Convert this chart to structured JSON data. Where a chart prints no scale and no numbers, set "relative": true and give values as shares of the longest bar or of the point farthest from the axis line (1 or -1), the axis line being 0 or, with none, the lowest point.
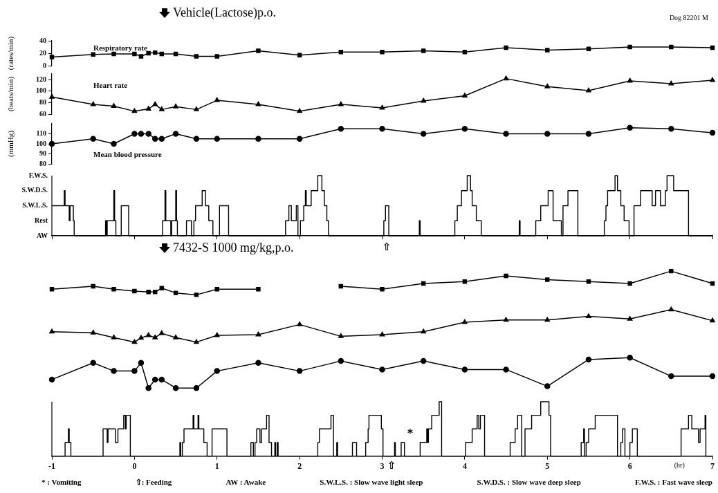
{
  "chart_data": [
    {
      "type": "line",
      "title": "Vehicle(Lactose)p.o.",
      "ylabel": "(rates/min)",
      "annotations": [
        "Dog 82201 M"
      ],
      "xlim": [
        -1,
        7
      ],
      "xticks": [
        -1,
        0,
        1,
        2,
        3,
        4,
        5,
        6,
        7
      ],
      "ylim": [
        0,
        40
      ],
      "yticks": [
        0,
        20,
        40
      ],
      "tick_labels": "y",
      "grid": false,
      "marker": "square",
      "series": [
        {
          "name": "Respiratory rate",
          "color": "#000000",
          "x": [
            -1,
            -0.5,
            -0.25,
            0,
            0.08,
            0.17,
            0.25,
            0.33,
            0.5,
            0.75,
            1,
            1.5,
            2,
            2.5,
            3,
            3.5,
            4,
            4.5,
            5,
            5.5,
            6,
            6.5,
            7
          ],
          "values": [
            14,
            18,
            19,
            19,
            15,
            20,
            21,
            19,
            19,
            15,
            15,
            24,
            17,
            22,
            22,
            24,
            22,
            29,
            25,
            27,
            30,
            30,
            29
          ]
        }
      ]
    },
    {
      "type": "line",
      "ylabel": "(beats/min)",
      "xlim": [
        -1,
        7
      ],
      "xticks": [
        -1,
        0,
        1,
        2,
        3,
        4,
        5,
        6,
        7
      ],
      "ylim": [
        60,
        130
      ],
      "yticks": [
        60,
        80,
        100,
        120
      ],
      "tick_labels": "y",
      "grid": false,
      "marker": "triangle",
      "series": [
        {
          "name": "Heart rate",
          "color": "#000000",
          "x": [
            -1,
            -0.5,
            -0.25,
            0,
            0.17,
            0.25,
            0.33,
            0.5,
            0.75,
            1,
            1.5,
            2,
            2.5,
            3,
            3.5,
            4,
            4.5,
            5,
            5.5,
            6,
            6.5,
            7
          ],
          "values": [
            90,
            77,
            74,
            65,
            69,
            77,
            68,
            73,
            68,
            84,
            77,
            65,
            77,
            71,
            83,
            92,
            122,
            108,
            101,
            118,
            113,
            119
          ]
        }
      ]
    },
    {
      "type": "line",
      "ylabel": "(mmHg)",
      "xlim": [
        -1,
        7
      ],
      "xticks": [
        -1,
        0,
        1,
        2,
        3,
        4,
        5,
        6,
        7
      ],
      "ylim": [
        80,
        120
      ],
      "yticks": [
        80,
        90,
        100,
        110
      ],
      "tick_labels": "y",
      "grid": false,
      "marker": "circle",
      "series": [
        {
          "name": "Mean blood pressure",
          "color": "#000000",
          "x": [
            -1,
            -0.5,
            -0.25,
            0,
            0.08,
            0.17,
            0.25,
            0.33,
            0.5,
            0.75,
            1,
            1.5,
            2,
            2.5,
            3,
            3.5,
            4,
            4.5,
            5,
            5.5,
            6,
            6.5,
            7
          ],
          "values": [
            100,
            105,
            100,
            110,
            110,
            110,
            105,
            105,
            110,
            105,
            105,
            105,
            105,
            115,
            115,
            110,
            115,
            110,
            110,
            110,
            116,
            115,
            111
          ]
        }
      ]
    },
    {
      "type": "step",
      "relative": true,
      "annotations": [
        "⇧",
        "F.W.S.",
        "S.W.D.S.",
        "S.W.L.S.",
        "Rest",
        "AW"
      ],
      "xlim": [
        -1,
        7
      ],
      "xticks": [
        {
          "value": -1,
          "label": null
        },
        {
          "value": 0,
          "label": null
        },
        {
          "value": 1,
          "label": null
        },
        {
          "value": 2,
          "label": null
        },
        {
          "value": 3,
          "label": null
        },
        {
          "value": 4,
          "label": null
        },
        {
          "value": 5,
          "label": null
        },
        {
          "value": 6,
          "label": null
        },
        {
          "value": 7,
          "label": null
        }
      ],
      "tick_labels": false,
      "grid": false,
      "legend": false,
      "marker": "none",
      "series": [
        {
          "color": "#000000",
          "x": [
            -1,
            -0.85,
            -0.84,
            -0.79,
            -0.78,
            -0.74,
            -0.73,
            -0.35,
            -0.34,
            -0.33,
            -0.25,
            -0.24,
            -0.225,
            -0.16,
            -0.07,
            0.34,
            0.37,
            0.38,
            0.44,
            0.45,
            0.5,
            0.51,
            0.52,
            0.63,
            0.69,
            0.72,
            0.74,
            0.82,
            0.86,
            0.9,
            0.95,
            1.03,
            1.14,
            1.83,
            1.87,
            1.9,
            1.96,
            1.98,
            2.01,
            2.05,
            2.07,
            2.08,
            2.14,
            2.22,
            2.27,
            2.3,
            2.33,
            2.35,
            3.02,
            3.04,
            3.08,
            3.45,
            3.46,
            3.88,
            3.91,
            3.96,
            4.03,
            4.07,
            4.09,
            4.14,
            4.2,
            4.66,
            4.67,
            4.86,
            4.92,
            5.01,
            5.07,
            5.17,
            5.19,
            5.25,
            5.37,
            5.69,
            5.71,
            5.73,
            5.82,
            5.85,
            5.89,
            5.93,
            5.99,
            6.05,
            6.13,
            6.27,
            6.31,
            6.37,
            6.43,
            6.45,
            6.53,
            6.71,
            7
          ],
          "values": [
            0.5,
            0.75,
            0.5,
            0.25,
            0.5,
            0.25,
            0,
            0.25,
            0,
            0.25,
            0.75,
            0.25,
            0,
            0.5,
            0,
            0.25,
            0.75,
            0.25,
            0,
            0.25,
            0.75,
            0.25,
            0,
            0.25,
            0,
            0.25,
            0.5,
            0.75,
            0.5,
            0.25,
            0,
            0.5,
            0,
            0.25,
            0.5,
            0.25,
            0.5,
            0,
            0.25,
            0.5,
            0.75,
            0.5,
            0.75,
            1,
            0.75,
            0.5,
            0.25,
            0,
            0.25,
            0.5,
            0,
            0.25,
            0,
            0.25,
            0.5,
            0.75,
            1,
            0.75,
            0.5,
            0.25,
            0,
            0.25,
            0,
            0.25,
            0.5,
            0.75,
            0.25,
            0,
            0.5,
            0.75,
            0,
            0.25,
            0.5,
            0.75,
            1,
            0.75,
            0.5,
            0.25,
            0,
            0.5,
            0.75,
            0.5,
            0.75,
            0.5,
            0.75,
            1,
            0.75,
            0,
            0
          ]
        }
      ]
    },
    {
      "type": "line",
      "relative": true,
      "title": "7432-S 1000 mg/kg,p.o.",
      "xlim": [
        -1,
        7
      ],
      "tick_labels": false,
      "grid": false,
      "legend": false,
      "marker": "square",
      "series": [
        {
          "color": "#000000",
          "x": [
            -1,
            -0.5,
            -0.25,
            0,
            0.17,
            0.25,
            0.33,
            0.5,
            0.75,
            1,
            1.5,
            2,
            2.5,
            3,
            3.5,
            4,
            4.5,
            5,
            5.5,
            6,
            6.5,
            7
          ],
          "values": [
            0.24,
            0.36,
            0.24,
            0.16,
            0.12,
            0.12,
            0.28,
            0.08,
            0,
            0.24,
            0.24,
            null,
            0.36,
            0.24,
            0.48,
            0.56,
            0.8,
            0.64,
            0.56,
            0.48,
            1,
            0.48
          ]
        }
      ]
    },
    {
      "type": "line",
      "relative": true,
      "xlim": [
        -1,
        7
      ],
      "tick_labels": false,
      "grid": false,
      "legend": false,
      "marker": "triangle",
      "series": [
        {
          "color": "#000000",
          "x": [
            -1,
            -0.5,
            -0.25,
            0,
            0.08,
            0.17,
            0.25,
            0.33,
            0.5,
            0.75,
            1,
            1.5,
            2,
            2.5,
            3,
            3.5,
            4,
            4.5,
            5,
            5.5,
            6,
            6.5,
            7
          ],
          "values": [
            0.32,
            0.29,
            0.14,
            0,
            0.13,
            0.21,
            0.14,
            0.27,
            0.14,
            0,
            0.21,
            0.23,
            0.54,
            0.18,
            0.23,
            0.32,
            0.61,
            0.68,
            0.68,
            0.79,
            0.71,
            1,
            0.66
          ]
        }
      ]
    },
    {
      "type": "line",
      "relative": true,
      "xlim": [
        -1,
        7
      ],
      "tick_labels": false,
      "grid": false,
      "legend": false,
      "marker": "circle",
      "series": [
        {
          "color": "#000000",
          "x": [
            -1,
            -0.5,
            -0.25,
            0,
            0.08,
            0.17,
            0.25,
            0.33,
            0.5,
            0.75,
            1,
            1.5,
            2,
            2.5,
            3,
            3.5,
            4,
            4.5,
            5,
            5.5,
            6,
            6.5,
            7
          ],
          "values": [
            0.28,
            0.83,
            0.56,
            0.56,
            0.83,
            0,
            0.28,
            0.28,
            0,
            0,
            0.56,
            0.83,
            0.56,
            0.89,
            0.61,
            0.89,
            0.61,
            0.61,
            0.06,
            0.94,
            1,
            0.39,
            0.39
          ]
        }
      ]
    },
    {
      "type": "step",
      "relative": true,
      "xlabel": "(hr)",
      "annotations": [
        "⇧",
        "*",
        "* : Vomiting",
        "⇧: Feeding",
        "AW : Awake",
        "S.W.L.S. : Slow wave light sleep",
        "S.W.D.S. : Slow wave deep sleep",
        "F.W.S. : Fast wave sleep"
      ],
      "xlim": [
        -1,
        7
      ],
      "xticks": [
        -1,
        0,
        1,
        2,
        3,
        4,
        5,
        6,
        7
      ],
      "tick_labels": "x",
      "grid": false,
      "legend": false,
      "marker": "none",
      "series": [
        {
          "color": "#000000",
          "x": [
            -1,
            -0.84,
            -0.8,
            -0.79,
            -0.77,
            -0.38,
            -0.33,
            -0.32,
            -0.23,
            -0.2,
            -0.13,
            -0.11,
            -0.1,
            -0.05,
            0.55,
            0.56,
            0.58,
            0.6,
            0.71,
            0.72,
            0.77,
            0.78,
            0.84,
            0.88,
            0.94,
            1.12,
            1.41,
            1.44,
            1.46,
            1.48,
            1.52,
            1.54,
            1.6,
            1.63,
            1.66,
            1.7,
            1.71,
            1.73,
            1.74,
            2.22,
            2.24,
            2.38,
            2.41,
            2.45,
            2.46,
            2.64,
            2.69,
            2.8,
            2.83,
            2.84,
            2.99,
            3.01,
            3.15,
            3.16,
            3.23,
            3.27,
            3.46,
            3.54,
            3.55,
            3.56,
            3.6,
            3.69,
            3.72,
            4.01,
            4.09,
            4.15,
            4.17,
            4.19,
            4.24,
            4.55,
            4.61,
            4.64,
            4.69,
            4.73,
            4.81,
            4.92,
            5.02,
            5.04,
            5.41,
            5.44,
            5.45,
            5.47,
            5.5,
            5.58,
            5.85,
            5.89,
            5.91,
            5.94,
            6,
            6.03,
            6.09,
            6.62,
            6.71,
            6.75,
            6.83,
            6.85,
            6.91,
            6.92,
            7
          ],
          "values": [
            0,
            0.25,
            0.5,
            0.25,
            0,
            0.5,
            0.25,
            0.5,
            0.25,
            0.5,
            0.75,
            0.5,
            0.75,
            0,
            0.25,
            0,
            0.25,
            0.5,
            0.75,
            0.5,
            0.75,
            0.5,
            0.25,
            0,
            0.5,
            0,
            0.25,
            0,
            0.25,
            0.5,
            0.25,
            0.5,
            0.75,
            0.25,
            0,
            0.25,
            0,
            0.25,
            0,
            0.25,
            0.5,
            0.75,
            0,
            0.25,
            0,
            0.25,
            0,
            0.25,
            0.5,
            0.75,
            0.5,
            0,
            0.25,
            0,
            0.25,
            0,
            0.25,
            0.5,
            0.25,
            0.5,
            0.75,
            1,
            0,
            0.25,
            0.5,
            0.75,
            0.5,
            0.75,
            0,
            0.25,
            0.5,
            0.75,
            0,
            0.5,
            0.75,
            1,
            0.75,
            0,
            0.25,
            0.5,
            0,
            0.25,
            0.5,
            0.75,
            0,
            0.25,
            0.5,
            0,
            0.25,
            0.5,
            0,
            0.5,
            0.75,
            0.5,
            0.25,
            0.5,
            0.75,
            0,
            0
          ]
        }
      ]
    }
  ]
}
